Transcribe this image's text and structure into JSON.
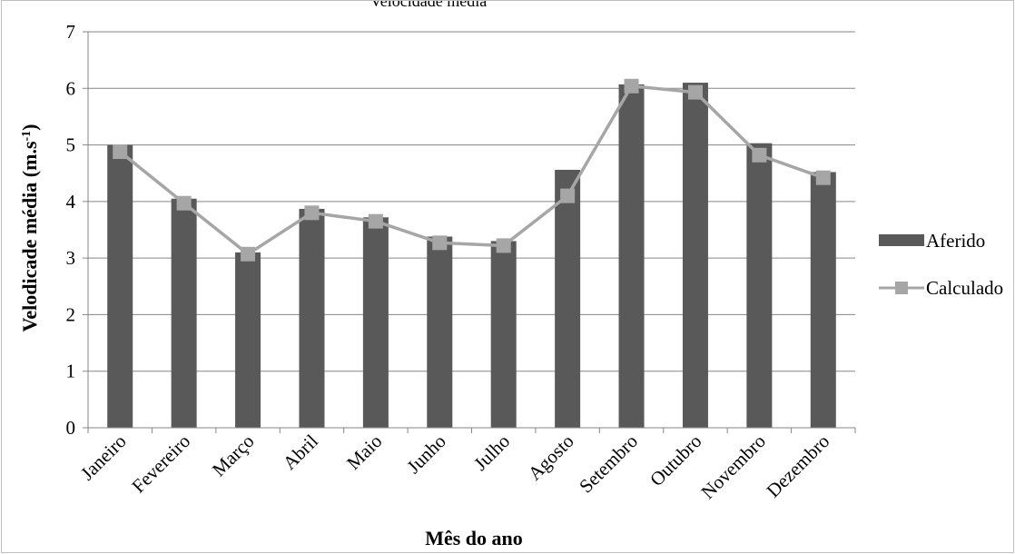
{
  "chart_data": {
    "type": "bar",
    "title": "Velocidade média",
    "xlabel": "Mês do ano",
    "ylabel_main": "Velodicade média (m.s",
    "ylabel_sup": "-1",
    "ylabel_close": ")",
    "ylim": [
      0,
      7
    ],
    "ytick_step": 1,
    "grid": true,
    "legend_position": "right",
    "categories": [
      "Janeiro",
      "Fevereiro",
      "Março",
      "Abril",
      "Maio",
      "Junho",
      "Julho",
      "Agosto",
      "Setembro",
      "Outubro",
      "Novembro",
      "Dezembro"
    ],
    "series": [
      {
        "name": "Aferido",
        "kind": "bar",
        "color": "#595959",
        "values": [
          5.0,
          4.05,
          3.1,
          3.87,
          3.72,
          3.38,
          3.3,
          4.56,
          6.07,
          6.1,
          5.03,
          4.52
        ]
      },
      {
        "name": "Calculado",
        "kind": "line",
        "color": "#a6a6a6",
        "values": [
          4.88,
          3.97,
          3.07,
          3.8,
          3.65,
          3.27,
          3.22,
          4.1,
          6.04,
          5.93,
          4.82,
          4.42
        ]
      }
    ]
  }
}
